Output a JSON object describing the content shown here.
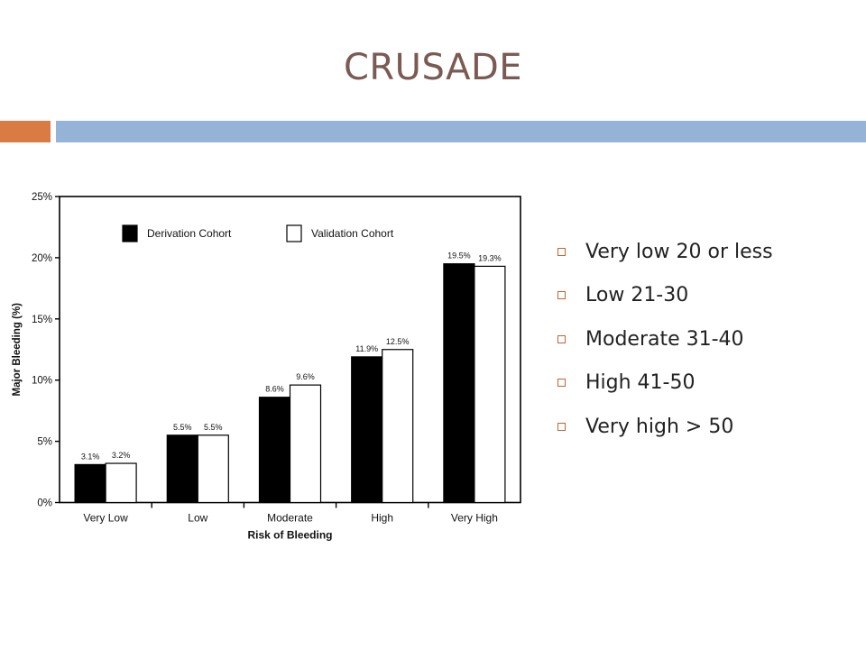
{
  "title": "CRUSADE",
  "bullets": [
    "Very low 20 or less",
    "Low 21-30",
    "Moderate 31-40",
    "High 41-50",
    "Very high > 50"
  ],
  "colors": {
    "accent_orange": "#d97b42",
    "accent_blue": "#95b3d7",
    "title": "#7a5a52",
    "bullet": "#c0652e"
  },
  "chart_data": {
    "type": "bar",
    "categories": [
      "Very Low",
      "Low",
      "Moderate",
      "High",
      "Very High"
    ],
    "series": [
      {
        "name": "Derivation Cohort",
        "values": [
          3.1,
          5.5,
          8.6,
          11.9,
          19.5
        ],
        "labels": [
          "3.1%",
          "5.5%",
          "8.6%",
          "11.9%",
          "19.5%"
        ],
        "color": "#000000"
      },
      {
        "name": "Validation Cohort",
        "values": [
          3.2,
          5.5,
          9.6,
          12.5,
          19.3
        ],
        "labels": [
          "3.2%",
          "5.5%",
          "9.6%",
          "12.5%",
          "19.3%"
        ],
        "color": "#ffffff"
      }
    ],
    "yticks": [
      "0%",
      "5%",
      "10%",
      "15%",
      "20%",
      "25%"
    ],
    "ylim": [
      0,
      25
    ],
    "xlabel": "Risk of Bleeding",
    "ylabel": "Major Bleeding (%)",
    "legend_position": "top-left",
    "grid": false
  }
}
